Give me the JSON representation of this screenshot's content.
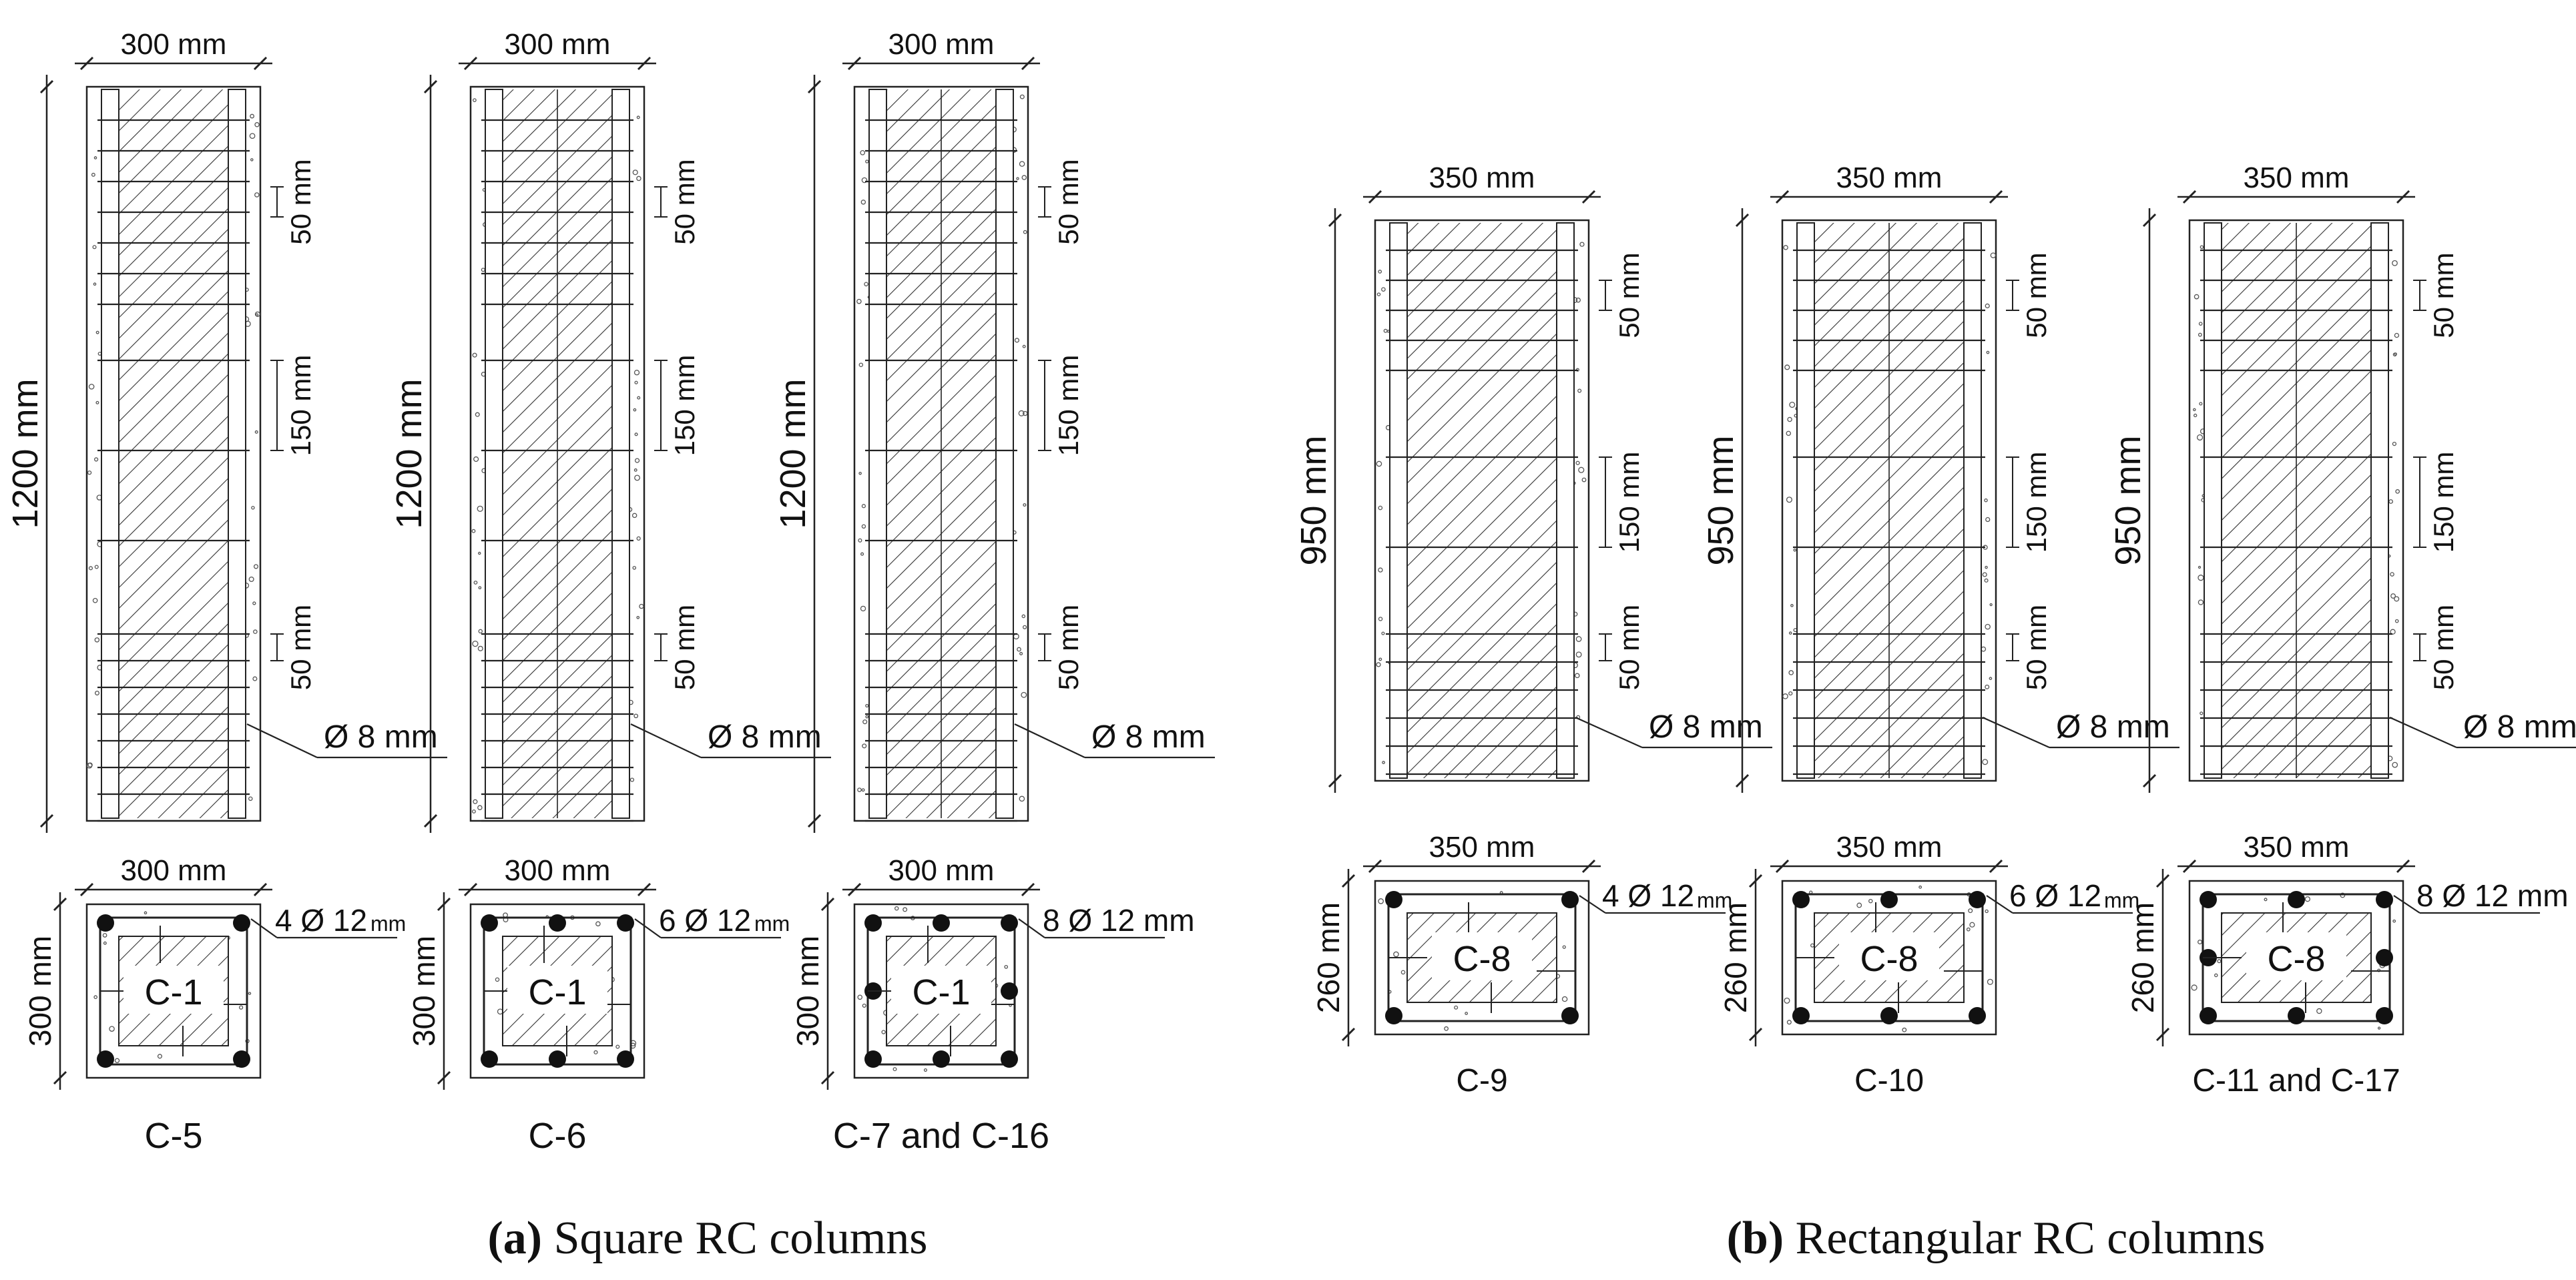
{
  "panel_a": {
    "columns": [
      {
        "width_label": "300 mm",
        "height_label": "1200 mm",
        "spacing_top": "50 mm",
        "spacing_mid": "150 mm",
        "spacing_bot": "50 mm",
        "stirrup_label": "Ø 8 mm",
        "section_width": "300 mm",
        "section_depth": "300 mm",
        "rebar_label": "4 Ø 12",
        "rebar_unit": "mm",
        "core_label": "C-1",
        "name": "C-5",
        "bars": 4
      },
      {
        "width_label": "300 mm",
        "height_label": "1200 mm",
        "spacing_top": "50 mm",
        "spacing_mid": "150 mm",
        "spacing_bot": "50 mm",
        "stirrup_label": "Ø 8 mm",
        "section_width": "300 mm",
        "section_depth": "300 mm",
        "rebar_label": "6 Ø 12",
        "rebar_unit": "mm",
        "core_label": "C-1",
        "name": "C-6",
        "bars": 6
      },
      {
        "width_label": "300 mm",
        "height_label": "1200 mm",
        "spacing_top": "50 mm",
        "spacing_mid": "150 mm",
        "spacing_bot": "50 mm",
        "stirrup_label": "Ø 8 mm",
        "section_width": "300 mm",
        "section_depth": "300 mm",
        "rebar_label": "8 Ø 12 mm",
        "rebar_unit": "",
        "core_label": "C-1",
        "name": "C-7 and C-16",
        "bars": 8
      }
    ],
    "caption_letter": "(a)",
    "caption_text": " Square RC columns"
  },
  "panel_b": {
    "columns": [
      {
        "width_label": "350 mm",
        "height_label": "950 mm",
        "spacing_top": "50 mm",
        "spacing_mid": "150 mm",
        "spacing_bot": "50 mm",
        "stirrup_label": "Ø 8 mm",
        "section_width": "350 mm",
        "section_depth": "260 mm",
        "rebar_label": "4 Ø 12",
        "rebar_unit": "mm",
        "core_label": "C-8",
        "name": "C-9",
        "bars": 4
      },
      {
        "width_label": "350 mm",
        "height_label": "950 mm",
        "spacing_top": "50 mm",
        "spacing_mid": "150 mm",
        "spacing_bot": "50 mm",
        "stirrup_label": "Ø 8 mm",
        "section_width": "350 mm",
        "section_depth": "260 mm",
        "rebar_label": "6 Ø 12",
        "rebar_unit": "mm",
        "core_label": "C-8",
        "name": "C-10",
        "bars": 6
      },
      {
        "width_label": "350 mm",
        "height_label": "950 mm",
        "spacing_top": "50 mm",
        "spacing_mid": "150 mm",
        "spacing_bot": "50 mm",
        "stirrup_label": "Ø 8 mm",
        "section_width": "350 mm",
        "section_depth": "260 mm",
        "rebar_label": "8 Ø 12 mm",
        "rebar_unit": "",
        "core_label": "C-8",
        "name": "C-11 and C-17",
        "bars": 8
      }
    ],
    "caption_letter": "(b)",
    "caption_text": " Rectangular RC columns"
  }
}
